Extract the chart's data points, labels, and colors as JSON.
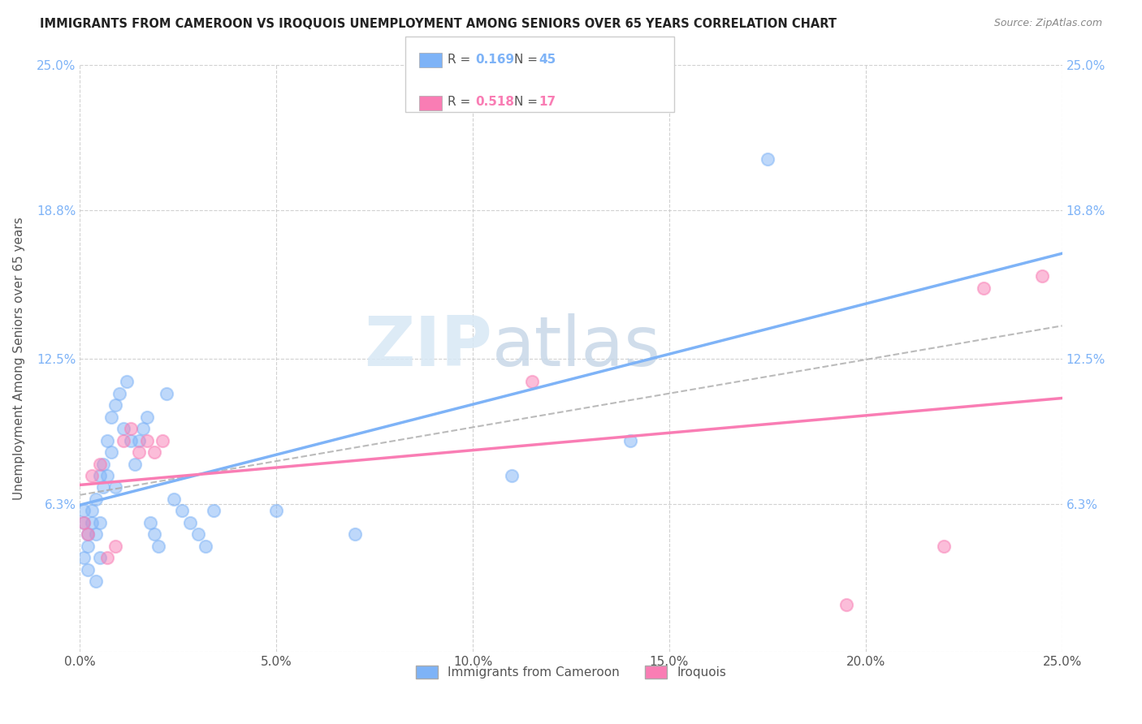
{
  "title": "IMMIGRANTS FROM CAMEROON VS IROQUOIS UNEMPLOYMENT AMONG SENIORS OVER 65 YEARS CORRELATION CHART",
  "source": "Source: ZipAtlas.com",
  "ylabel_label": "Unemployment Among Seniors over 65 years",
  "legend_label1": "Immigrants from Cameroon",
  "legend_label2": "Iroquois",
  "r1": "0.169",
  "n1": "45",
  "r2": "0.518",
  "n2": "17",
  "blue_color": "#7EB3F7",
  "pink_color": "#F97DB4",
  "watermark_zip": "ZIP",
  "watermark_atlas": "atlas",
  "x_tick_vals": [
    0.0,
    0.05,
    0.1,
    0.15,
    0.2,
    0.25
  ],
  "x_tick_labels": [
    "0.0%",
    "5.0%",
    "10.0%",
    "15.0%",
    "20.0%",
    "25.0%"
  ],
  "y_tick_vals": [
    0.0,
    0.063,
    0.125,
    0.188,
    0.25
  ],
  "y_tick_labels": [
    "",
    "6.3%",
    "12.5%",
    "18.8%",
    "25.0%"
  ],
  "blue_x": [
    0.001,
    0.001,
    0.001,
    0.002,
    0.002,
    0.002,
    0.003,
    0.003,
    0.004,
    0.004,
    0.004,
    0.005,
    0.005,
    0.005,
    0.006,
    0.006,
    0.007,
    0.007,
    0.008,
    0.008,
    0.009,
    0.009,
    0.01,
    0.011,
    0.012,
    0.013,
    0.014,
    0.015,
    0.016,
    0.017,
    0.018,
    0.019,
    0.02,
    0.022,
    0.024,
    0.026,
    0.028,
    0.03,
    0.032,
    0.034,
    0.05,
    0.07,
    0.11,
    0.14,
    0.175
  ],
  "blue_y": [
    0.055,
    0.06,
    0.04,
    0.05,
    0.045,
    0.035,
    0.055,
    0.06,
    0.03,
    0.05,
    0.065,
    0.055,
    0.075,
    0.04,
    0.07,
    0.08,
    0.09,
    0.075,
    0.085,
    0.1,
    0.07,
    0.105,
    0.11,
    0.095,
    0.115,
    0.09,
    0.08,
    0.09,
    0.095,
    0.1,
    0.055,
    0.05,
    0.045,
    0.11,
    0.065,
    0.06,
    0.055,
    0.05,
    0.045,
    0.06,
    0.06,
    0.05,
    0.075,
    0.09,
    0.21
  ],
  "pink_x": [
    0.001,
    0.002,
    0.003,
    0.005,
    0.007,
    0.009,
    0.011,
    0.013,
    0.015,
    0.017,
    0.019,
    0.021,
    0.115,
    0.195,
    0.22,
    0.23,
    0.245
  ],
  "pink_y": [
    0.055,
    0.05,
    0.075,
    0.08,
    0.04,
    0.045,
    0.09,
    0.095,
    0.085,
    0.09,
    0.085,
    0.09,
    0.115,
    0.02,
    0.045,
    0.155,
    0.16
  ]
}
